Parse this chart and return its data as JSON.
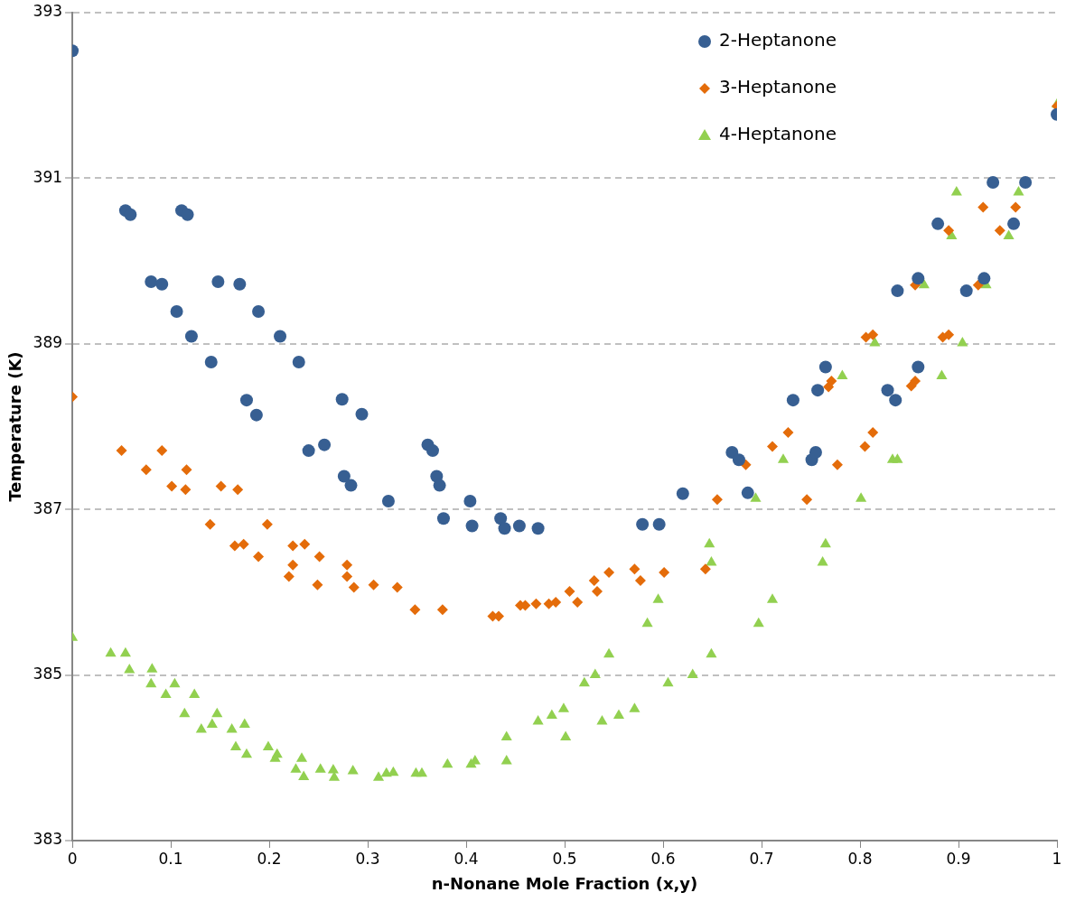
{
  "chart_data": {
    "type": "scatter",
    "xlabel": "n-Nonane Mole Fraction (x,y)",
    "ylabel": "Temperature (K)",
    "xlim": [
      0,
      1
    ],
    "ylim": [
      383,
      393
    ],
    "xticks": [
      0,
      0.1,
      0.2,
      0.3,
      0.4,
      0.5,
      0.6,
      0.7,
      0.8,
      0.9,
      1
    ],
    "yticks": [
      383,
      385,
      387,
      389,
      391,
      393
    ],
    "grid": "y",
    "legend": "top right",
    "series": [
      {
        "name": "2-Heptanone",
        "color": "#375f92",
        "marker": "circle",
        "x": [
          0,
          0.054,
          0.059,
          0.08,
          0.091,
          0.106,
          0.111,
          0.117,
          0.121,
          0.141,
          0.148,
          0.17,
          0.177,
          0.187,
          0.189,
          0.211,
          0.23,
          0.24,
          0.256,
          0.274,
          0.276,
          0.283,
          0.294,
          0.321,
          0.361,
          0.366,
          0.37,
          0.373,
          0.377,
          0.404,
          0.406,
          0.435,
          0.439,
          0.454,
          0.473,
          0.579,
          0.596,
          0.62,
          0.67,
          0.677,
          0.686,
          0.732,
          0.751,
          0.755,
          0.757,
          0.765,
          0.828,
          0.836,
          0.838,
          0.859,
          0.859,
          0.879,
          0.908,
          0.926,
          0.935,
          0.956,
          0.968,
          1.0
        ],
        "values": [
          392.54,
          390.61,
          390.56,
          389.75,
          389.72,
          389.39,
          390.61,
          390.56,
          389.09,
          388.78,
          389.75,
          389.72,
          388.32,
          388.14,
          389.39,
          389.09,
          388.78,
          387.71,
          387.78,
          388.33,
          387.4,
          387.29,
          388.15,
          387.1,
          387.78,
          387.71,
          387.4,
          387.29,
          386.89,
          387.1,
          386.8,
          386.89,
          386.77,
          386.8,
          386.77,
          386.82,
          386.82,
          387.19,
          387.69,
          387.6,
          387.2,
          388.32,
          387.6,
          387.69,
          388.44,
          388.72,
          388.44,
          388.32,
          389.64,
          388.72,
          389.79,
          390.45,
          389.64,
          389.79,
          390.95,
          390.45,
          390.95,
          391.77
        ]
      },
      {
        "name": "3-Heptanone",
        "color": "#e46c0a",
        "marker": "diamond",
        "x": [
          0,
          0.05,
          0.075,
          0.091,
          0.101,
          0.115,
          0.116,
          0.14,
          0.151,
          0.165,
          0.168,
          0.174,
          0.189,
          0.198,
          0.22,
          0.224,
          0.224,
          0.236,
          0.249,
          0.251,
          0.279,
          0.279,
          0.286,
          0.306,
          0.33,
          0.348,
          0.376,
          0.427,
          0.433,
          0.455,
          0.46,
          0.471,
          0.484,
          0.491,
          0.505,
          0.513,
          0.53,
          0.533,
          0.545,
          0.571,
          0.577,
          0.601,
          0.643,
          0.655,
          0.684,
          0.711,
          0.727,
          0.746,
          0.768,
          0.771,
          0.777,
          0.805,
          0.806,
          0.813,
          0.813,
          0.852,
          0.856,
          0.856,
          0.884,
          0.89,
          0.89,
          0.92,
          0.925,
          0.942,
          0.958,
          1.0
        ],
        "values": [
          388.36,
          387.71,
          387.48,
          387.71,
          387.28,
          387.24,
          387.48,
          386.82,
          387.28,
          386.56,
          387.24,
          386.58,
          386.43,
          386.82,
          386.19,
          386.56,
          386.33,
          386.58,
          386.09,
          386.43,
          386.33,
          386.19,
          386.06,
          386.09,
          386.06,
          385.79,
          385.79,
          385.71,
          385.71,
          385.84,
          385.84,
          385.86,
          385.86,
          385.88,
          386.01,
          385.88,
          386.14,
          386.01,
          386.24,
          386.28,
          386.14,
          386.24,
          386.28,
          387.12,
          387.54,
          387.76,
          387.93,
          387.12,
          388.48,
          388.55,
          387.54,
          387.76,
          389.08,
          387.93,
          389.11,
          388.49,
          388.55,
          389.71,
          389.08,
          389.11,
          390.37,
          389.71,
          390.65,
          390.37,
          390.65,
          391.87
        ]
      },
      {
        "name": "4-Heptanone",
        "color": "#92d050",
        "marker": "triangle",
        "x": [
          0,
          0.039,
          0.054,
          0.058,
          0.08,
          0.081,
          0.095,
          0.104,
          0.114,
          0.124,
          0.131,
          0.142,
          0.147,
          0.162,
          0.166,
          0.175,
          0.177,
          0.199,
          0.206,
          0.208,
          0.227,
          0.233,
          0.235,
          0.252,
          0.265,
          0.266,
          0.285,
          0.311,
          0.319,
          0.326,
          0.349,
          0.355,
          0.381,
          0.405,
          0.409,
          0.441,
          0.441,
          0.473,
          0.487,
          0.499,
          0.501,
          0.52,
          0.531,
          0.538,
          0.545,
          0.555,
          0.571,
          0.584,
          0.595,
          0.605,
          0.63,
          0.647,
          0.649,
          0.649,
          0.694,
          0.697,
          0.711,
          0.722,
          0.762,
          0.765,
          0.782,
          0.801,
          0.815,
          0.833,
          0.838,
          0.865,
          0.883,
          0.893,
          0.898,
          0.904,
          0.928,
          0.951,
          0.961,
          1.0
        ],
        "values": [
          385.45,
          385.26,
          385.26,
          385.06,
          384.89,
          385.07,
          384.76,
          384.89,
          384.53,
          384.76,
          384.34,
          384.4,
          384.53,
          384.34,
          384.13,
          384.4,
          384.04,
          384.13,
          383.99,
          384.04,
          383.86,
          383.99,
          383.77,
          383.86,
          383.85,
          383.76,
          383.84,
          383.76,
          383.81,
          383.82,
          383.81,
          383.81,
          383.92,
          383.92,
          383.96,
          383.96,
          384.25,
          384.44,
          384.51,
          384.59,
          384.25,
          384.9,
          385.0,
          384.44,
          385.25,
          384.51,
          384.59,
          385.62,
          385.91,
          384.9,
          385.0,
          386.58,
          386.36,
          385.25,
          387.13,
          385.62,
          385.91,
          387.6,
          386.36,
          386.58,
          388.61,
          387.13,
          389.01,
          387.6,
          387.6,
          389.71,
          388.61,
          390.3,
          390.83,
          389.01,
          389.71,
          390.3,
          390.83,
          391.89
        ]
      }
    ]
  }
}
